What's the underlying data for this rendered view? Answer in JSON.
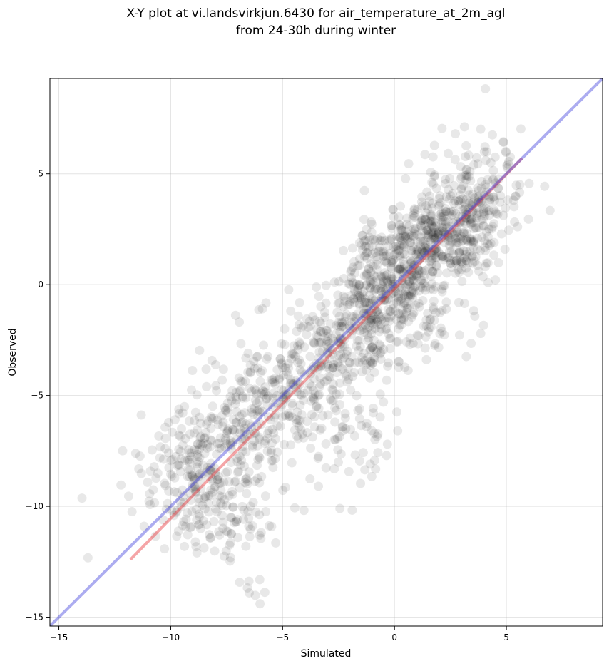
{
  "chart_data": {
    "type": "scatter",
    "title_lines": [
      "X-Y plot at vi.landsvirkjun.6430 for air_temperature_at_2m_agl",
      "from 24-30h during winter"
    ],
    "xlabel": "Simulated",
    "ylabel": "Observed",
    "xlim": [
      -15.4,
      9.3
    ],
    "ylim": [
      -15.4,
      9.3
    ],
    "xticks": [
      -15,
      -10,
      -5,
      0,
      5
    ],
    "yticks": [
      -15,
      -10,
      -5,
      0,
      5
    ],
    "xtick_labels": [
      "−15",
      "−10",
      "−5",
      "0",
      "5"
    ],
    "ytick_labels": [
      "−15",
      "−10",
      "−5",
      "0",
      "5"
    ],
    "grid": true,
    "point_color": "#000000",
    "point_opacity": 0.09,
    "lines": [
      {
        "role": "regression",
        "color": "#e8383b",
        "opacity": 0.45,
        "x": [
          -11.8,
          5.7
        ],
        "y": [
          -12.4,
          5.7
        ]
      },
      {
        "role": "identity",
        "color": "#3a3adc",
        "opacity": 0.42,
        "x": [
          -15.4,
          9.3
        ],
        "y": [
          -15.4,
          9.3
        ]
      }
    ],
    "clusters": [
      {
        "cx": 1.8,
        "cy": 2.1,
        "sx": 1.3,
        "sy": 1.1,
        "n": 320
      },
      {
        "cx": 3.2,
        "cy": 3.4,
        "sx": 1.0,
        "sy": 1.3,
        "n": 160
      },
      {
        "cx": 4.6,
        "cy": 4.6,
        "sx": 0.8,
        "sy": 1.4,
        "n": 60
      },
      {
        "cx": 0.0,
        "cy": 0.4,
        "sx": 1.0,
        "sy": 1.0,
        "n": 220
      },
      {
        "cx": -1.0,
        "cy": -1.4,
        "sx": 1.0,
        "sy": 1.2,
        "n": 170
      },
      {
        "cx": -2.6,
        "cy": -3.0,
        "sx": 1.1,
        "sy": 1.3,
        "n": 150
      },
      {
        "cx": -4.5,
        "cy": -4.4,
        "sx": 1.1,
        "sy": 1.6,
        "n": 150
      },
      {
        "cx": -6.7,
        "cy": -6.4,
        "sx": 1.2,
        "sy": 1.6,
        "n": 180
      },
      {
        "cx": -9.0,
        "cy": -8.4,
        "sx": 1.2,
        "sy": 1.4,
        "n": 200
      },
      {
        "cx": -7.5,
        "cy": -10.5,
        "sx": 1.3,
        "sy": 1.0,
        "n": 80
      },
      {
        "cx": -2.0,
        "cy": -6.8,
        "sx": 1.3,
        "sy": 1.5,
        "n": 60
      },
      {
        "cx": 1.5,
        "cy": -1.8,
        "sx": 1.2,
        "sy": 1.0,
        "n": 50
      },
      {
        "cx": -6.5,
        "cy": -13.6,
        "sx": 0.3,
        "sy": 0.5,
        "n": 8
      }
    ]
  }
}
